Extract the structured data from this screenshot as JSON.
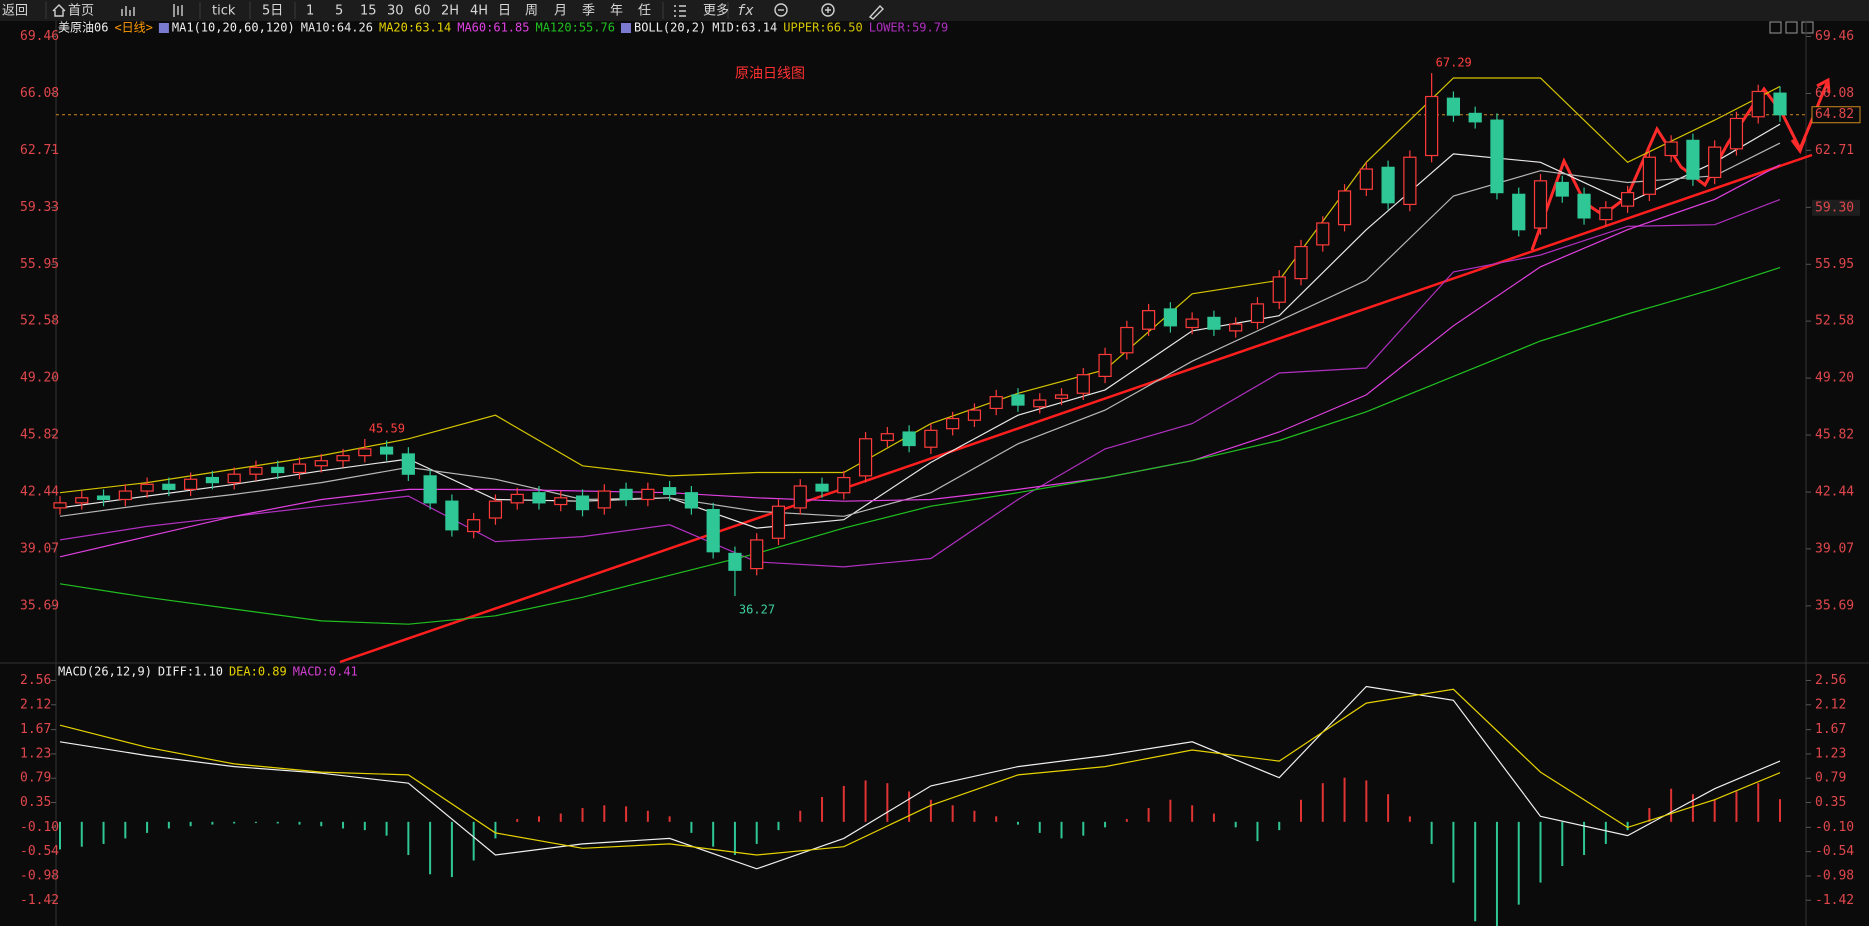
{
  "toolbar": [
    "返回",
    "首页",
    "tick",
    "5日",
    "1",
    "5",
    "15",
    "30",
    "60",
    "2H",
    "4H",
    "日",
    "周",
    "月",
    "季",
    "年",
    "任",
    "更多"
  ],
  "chart_data": {
    "type": "candlestick",
    "title": "原油日线图",
    "symbol": "美原油06",
    "period": "<日线>",
    "ma_label": "MA1(10,20,60,120)",
    "boll_label": "BOLL(20,2)",
    "ylim": [
      32.36,
      70.38
    ],
    "yticks": [
      69.46,
      66.08,
      62.71,
      59.33,
      55.95,
      52.58,
      {
        "value": 49.2,
        "label": "49.20"
      },
      45.82,
      42.44,
      39.07,
      35.69
    ],
    "last_price": 64.82,
    "side_label": {
      "value": 59.3,
      "label": "59.30"
    },
    "up_color": "#ff3b3b",
    "down_color": "#2fc796",
    "open": [
      41.5,
      41.8,
      42.2,
      42.0,
      42.5,
      42.9,
      42.6,
      43.3,
      43.0,
      43.5,
      43.9,
      43.6,
      44.0,
      44.3,
      44.6,
      45.1,
      44.7,
      43.4,
      41.9,
      40.1,
      40.9,
      41.8,
      42.4,
      41.7,
      42.2,
      41.5,
      42.6,
      42.0,
      42.7,
      42.4,
      41.4,
      38.8,
      37.9,
      39.7,
      41.5,
      42.9,
      42.4,
      43.4,
      45.5,
      46.0,
      45.1,
      46.2,
      46.7,
      47.4,
      48.2,
      47.5,
      48.0,
      48.3,
      49.3,
      50.7,
      52.1,
      53.3,
      52.2,
      52.8,
      52.0,
      52.5,
      53.7,
      55.1,
      57.1,
      58.3,
      60.4,
      61.7,
      59.5,
      62.4,
      65.8,
      64.9,
      64.5,
      60.1,
      58.1,
      60.8,
      60.1,
      58.6,
      59.4,
      60.1,
      62.4,
      63.3,
      61.1,
      62.8,
      64.7,
      66.1
    ],
    "high": [
      42.2,
      42.5,
      42.6,
      42.9,
      43.3,
      43.3,
      43.6,
      43.7,
      43.9,
      44.3,
      44.3,
      44.5,
      44.7,
      45.0,
      45.59,
      45.5,
      45.1,
      43.8,
      42.3,
      41.2,
      42.3,
      42.7,
      42.8,
      42.5,
      42.6,
      42.9,
      43.0,
      43.0,
      43.1,
      42.8,
      41.8,
      39.2,
      40.0,
      42.0,
      43.2,
      43.3,
      43.7,
      46.0,
      46.3,
      46.4,
      46.5,
      47.2,
      47.7,
      48.5,
      48.6,
      48.3,
      48.6,
      49.8,
      51.0,
      52.6,
      53.6,
      53.7,
      53.1,
      53.2,
      52.8,
      54.0,
      55.6,
      57.4,
      58.8,
      60.7,
      62.0,
      62.1,
      62.7,
      67.29,
      66.2,
      65.3,
      64.9,
      60.5,
      61.3,
      61.2,
      60.5,
      59.7,
      60.6,
      62.7,
      63.6,
      63.7,
      63.3,
      65.0,
      66.6,
      66.5
    ],
    "low": [
      41.1,
      41.4,
      41.6,
      41.6,
      42.1,
      42.2,
      42.2,
      42.6,
      42.6,
      43.1,
      43.2,
      43.2,
      43.6,
      43.9,
      44.2,
      44.3,
      43.1,
      41.4,
      39.8,
      39.7,
      40.5,
      41.4,
      41.4,
      41.3,
      41.0,
      41.1,
      41.6,
      41.6,
      41.9,
      41.1,
      38.5,
      36.27,
      37.5,
      39.3,
      41.1,
      42.1,
      42.0,
      43.0,
      45.1,
      44.8,
      44.7,
      45.8,
      46.3,
      47.0,
      47.2,
      47.1,
      47.6,
      47.9,
      48.9,
      50.3,
      51.7,
      51.9,
      51.8,
      51.7,
      51.6,
      52.1,
      53.3,
      54.7,
      56.7,
      57.9,
      60.0,
      59.2,
      59.1,
      62.0,
      64.4,
      64.0,
      59.8,
      57.6,
      57.7,
      59.6,
      58.3,
      58.2,
      59.0,
      59.7,
      62.0,
      60.6,
      60.7,
      62.4,
      64.3,
      64.4
    ],
    "close": [
      41.8,
      42.1,
      42.0,
      42.5,
      42.9,
      42.6,
      43.2,
      43.0,
      43.5,
      43.9,
      43.6,
      44.1,
      44.3,
      44.6,
      45.0,
      44.7,
      43.5,
      41.8,
      40.2,
      40.8,
      41.9,
      42.3,
      41.8,
      42.1,
      41.4,
      42.5,
      42.0,
      42.6,
      42.3,
      41.5,
      38.9,
      37.8,
      39.6,
      41.6,
      42.8,
      42.5,
      43.3,
      45.6,
      45.9,
      45.2,
      46.1,
      46.8,
      47.3,
      48.1,
      47.6,
      47.9,
      48.2,
      49.4,
      50.6,
      52.2,
      53.2,
      52.3,
      52.7,
      52.1,
      52.4,
      53.6,
      55.2,
      57.0,
      58.4,
      60.3,
      61.6,
      59.6,
      62.3,
      65.9,
      64.8,
      64.4,
      60.2,
      58.0,
      60.9,
      60.0,
      58.7,
      59.3,
      60.2,
      62.3,
      63.2,
      61.0,
      62.9,
      64.6,
      66.2,
      64.82
    ],
    "line_x": [
      0,
      4,
      8,
      12,
      16,
      20,
      24,
      28,
      32,
      36,
      40,
      44,
      48,
      52,
      56,
      60,
      64,
      68,
      72,
      76,
      79
    ],
    "series": [
      {
        "legend": "MA10:64.26",
        "color": "#e8e8e8",
        "values": [
          41.5,
          42.2,
          42.9,
          43.7,
          44.4,
          42.0,
          41.9,
          42.1,
          40.3,
          40.8,
          44.2,
          47.0,
          48.5,
          52.0,
          52.9,
          58.0,
          62.5,
          62.0,
          59.6,
          62.0,
          64.26
        ]
      },
      {
        "legend": "MA20:63.14",
        "color": "#e6d200",
        "line_color": "#b8b8b8",
        "values": [
          41.0,
          41.7,
          42.3,
          43.0,
          43.9,
          43.2,
          42.0,
          42.1,
          41.3,
          41.0,
          42.4,
          45.3,
          47.3,
          50.2,
          52.6,
          55.0,
          60.0,
          61.5,
          60.8,
          61.2,
          63.14
        ]
      },
      {
        "legend": "MA60:61.85",
        "color": "#e040e0",
        "values": [
          38.6,
          39.8,
          41.0,
          42.0,
          42.6,
          42.6,
          42.5,
          42.4,
          42.1,
          41.9,
          42.0,
          42.6,
          43.3,
          44.3,
          46.0,
          48.2,
          52.3,
          55.8,
          58.0,
          59.8,
          61.85
        ]
      },
      {
        "legend": "MA120:55.76",
        "color": "#20c020",
        "values": [
          37.0,
          36.2,
          35.5,
          34.8,
          34.6,
          35.1,
          36.2,
          37.5,
          38.8,
          40.3,
          41.6,
          42.4,
          43.3,
          44.3,
          45.5,
          47.2,
          49.3,
          51.4,
          53.0,
          54.5,
          55.76
        ]
      }
    ],
    "boll": [
      {
        "legend": "MID:63.14",
        "color": "#e8e8e8"
      },
      {
        "legend": "UPPER:66.50",
        "color": "#d4c400",
        "values": [
          42.4,
          43.0,
          43.8,
          44.6,
          45.6,
          47.0,
          44.0,
          43.4,
          43.6,
          43.6,
          46.5,
          48.3,
          49.7,
          54.2,
          55.0,
          62.0,
          67.0,
          67.0,
          62.0,
          64.5,
          66.5
        ]
      },
      {
        "legend": "LOWER:59.79",
        "color": "#b030c0",
        "values": [
          39.6,
          40.4,
          41.0,
          41.6,
          42.2,
          39.5,
          39.8,
          40.5,
          38.3,
          38.0,
          38.5,
          42.0,
          45.0,
          46.5,
          49.5,
          49.8,
          55.5,
          56.5,
          58.2,
          58.3,
          59.79
        ]
      }
    ],
    "macd": {
      "label": "MACD(26,12,9)",
      "ylim": [
        -1.85,
        2.84
      ],
      "yticks": [
        2.56,
        2.12,
        1.67,
        1.23,
        0.79,
        0.35,
        {
          "value": -0.1,
          "label": "-0.10"
        },
        -0.54,
        -0.98,
        -1.42
      ],
      "series": [
        {
          "legend": "DIFF:1.10",
          "color": "#f0f0f0",
          "values": [
            1.45,
            1.2,
            1.0,
            0.88,
            0.7,
            -0.6,
            -0.4,
            -0.3,
            -0.85,
            -0.3,
            0.65,
            1.0,
            1.2,
            1.45,
            0.8,
            2.45,
            2.2,
            0.1,
            -0.25,
            0.6,
            1.1
          ]
        },
        {
          "legend": "DEA:0.89",
          "color": "#e6d200",
          "values": [
            1.75,
            1.35,
            1.05,
            0.9,
            0.85,
            -0.2,
            -0.48,
            -0.4,
            -0.6,
            -0.45,
            0.3,
            0.85,
            1.0,
            1.3,
            1.1,
            2.15,
            2.4,
            0.9,
            -0.1,
            0.4,
            0.89
          ]
        }
      ],
      "bars_legend": "MACD:0.41",
      "bars_legend_color": "#d040d0",
      "up_color": "#e03434",
      "down_color": "#2fc796",
      "bars": [
        -0.5,
        -0.45,
        -0.4,
        -0.3,
        -0.2,
        -0.12,
        -0.08,
        -0.05,
        -0.03,
        -0.02,
        -0.03,
        -0.05,
        -0.08,
        -0.12,
        -0.15,
        -0.25,
        -0.6,
        -0.95,
        -1.0,
        -0.7,
        -0.3,
        0.05,
        0.1,
        0.15,
        0.25,
        0.3,
        0.28,
        0.2,
        0.1,
        -0.2,
        -0.45,
        -0.6,
        -0.4,
        -0.15,
        0.2,
        0.45,
        0.65,
        0.75,
        0.7,
        0.55,
        0.4,
        0.3,
        0.2,
        0.1,
        -0.05,
        -0.2,
        -0.3,
        -0.25,
        -0.1,
        0.05,
        0.25,
        0.4,
        0.3,
        0.15,
        -0.1,
        -0.35,
        -0.15,
        0.4,
        0.7,
        0.8,
        0.75,
        0.5,
        0.1,
        -0.4,
        -1.1,
        -1.8,
        -1.9,
        -1.5,
        -1.1,
        -0.8,
        -0.6,
        -0.4,
        -0.15,
        0.25,
        0.6,
        0.5,
        0.4,
        0.55,
        0.7,
        0.41
      ]
    }
  }
}
